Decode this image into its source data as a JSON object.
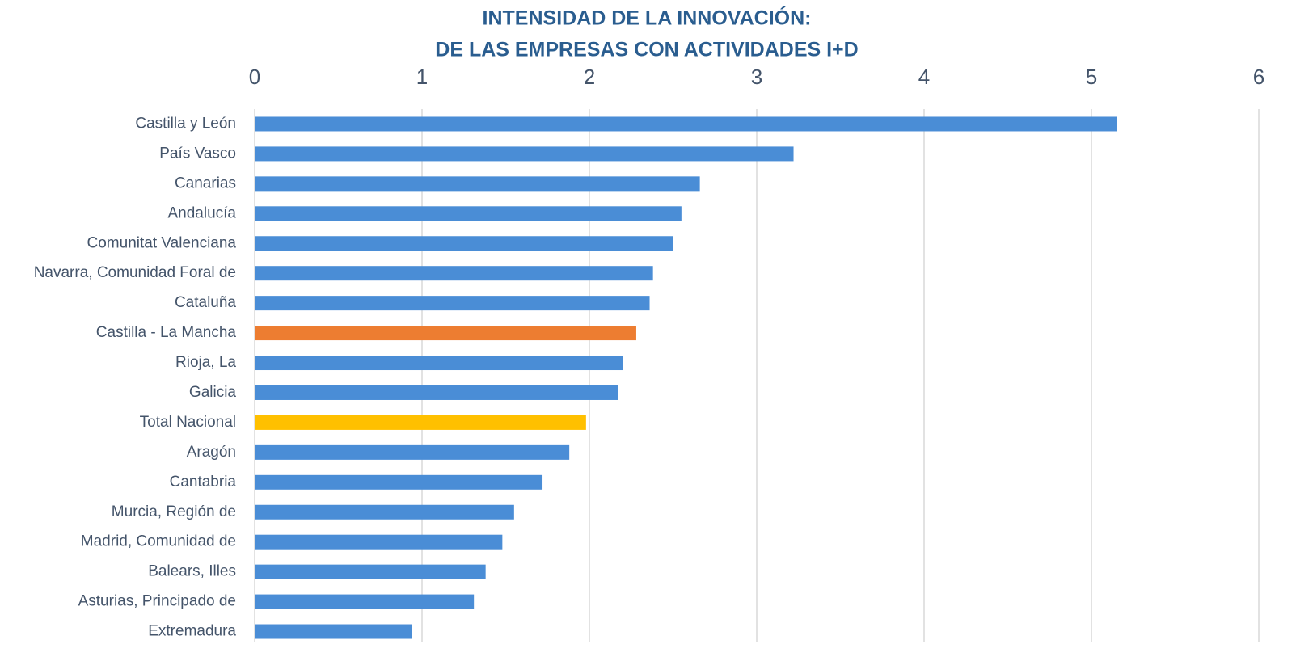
{
  "chart_data": {
    "type": "bar",
    "orientation": "horizontal",
    "title": [
      "INTENSIDAD DE LA INNOVACIÓN:",
      "DE LAS EMPRESAS CON ACTIVIDADES I+D"
    ],
    "categories": [
      "Castilla y León",
      "País Vasco",
      "Canarias",
      "Andalucía",
      "Comunitat Valenciana",
      "Navarra, Comunidad Foral de",
      "Cataluña",
      "Castilla - La Mancha",
      "Rioja, La",
      "Galicia",
      "Total Nacional",
      "Aragón",
      "Cantabria",
      "Murcia, Región de",
      "Madrid, Comunidad de",
      "Balears, Illes",
      "Asturias, Principado de",
      "Extremadura"
    ],
    "values": [
      5.15,
      3.22,
      2.66,
      2.55,
      2.5,
      2.38,
      2.36,
      2.28,
      2.2,
      2.17,
      1.98,
      1.88,
      1.72,
      1.55,
      1.48,
      1.38,
      1.31,
      0.94
    ],
    "colors": [
      "#4a8dd6",
      "#4a8dd6",
      "#4a8dd6",
      "#4a8dd6",
      "#4a8dd6",
      "#4a8dd6",
      "#4a8dd6",
      "#ed7d31",
      "#4a8dd6",
      "#4a8dd6",
      "#ffc000",
      "#4a8dd6",
      "#4a8dd6",
      "#4a8dd6",
      "#4a8dd6",
      "#4a8dd6",
      "#4a8dd6",
      "#4a8dd6"
    ],
    "xlim": [
      0,
      6
    ],
    "xticks": [
      0,
      1,
      2,
      3,
      4,
      5,
      6
    ],
    "grid": true
  }
}
